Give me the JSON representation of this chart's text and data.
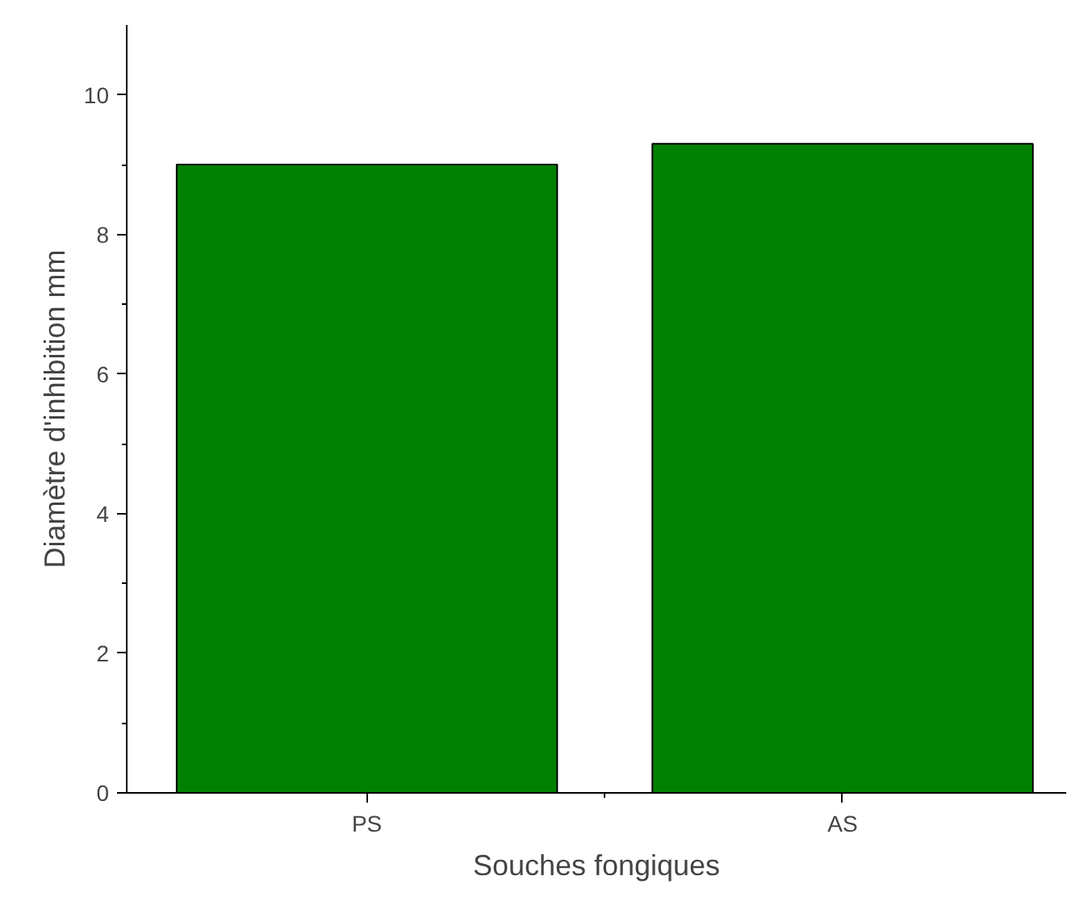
{
  "chart_data": {
    "type": "bar",
    "xlabel": "Souches fongiques",
    "ylabel": "Diamètre d'inhibition mm",
    "categories": [
      "PS",
      "AS"
    ],
    "values": [
      9.0,
      9.3
    ],
    "color": "#008000",
    "ylim": [
      0,
      11
    ],
    "yticks": [
      0,
      2,
      4,
      6,
      8,
      10
    ],
    "grid": false
  }
}
